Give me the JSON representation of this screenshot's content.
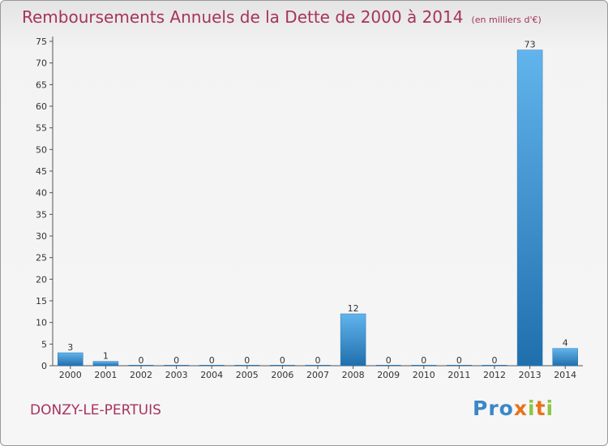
{
  "chart_data": {
    "type": "bar",
    "title": "Remboursements Annuels de la Dette de 2000 à 2014",
    "unit_label": "(en milliers d'€)",
    "categories": [
      "2000",
      "2001",
      "2002",
      "2003",
      "2004",
      "2005",
      "2006",
      "2007",
      "2008",
      "2009",
      "2010",
      "2011",
      "2012",
      "2013",
      "2014"
    ],
    "values": [
      3,
      1,
      0,
      0,
      0,
      0,
      0,
      0,
      12,
      0,
      0,
      0,
      0,
      73,
      4
    ],
    "ylim": [
      0,
      75
    ],
    "yticks": [
      0,
      5,
      10,
      15,
      20,
      25,
      30,
      35,
      40,
      45,
      50,
      55,
      60,
      65,
      70,
      75
    ],
    "grid": false,
    "xlabel": "",
    "ylabel": ""
  },
  "footer": {
    "town": "DONZY-LE-PERTUIS",
    "logo_letters": [
      "P",
      "r",
      "o",
      "x",
      "i",
      "t",
      "i"
    ]
  },
  "colors": {
    "title": "#a6335e",
    "bar_light": "#62b4ec",
    "bar_dark": "#1f6fad",
    "axis": "#555555",
    "logo": [
      "#3a87c8",
      "#3a87c8",
      "#3a87c8",
      "#e8721c",
      "#8dc641",
      "#e8721c",
      "#8dc641"
    ]
  }
}
